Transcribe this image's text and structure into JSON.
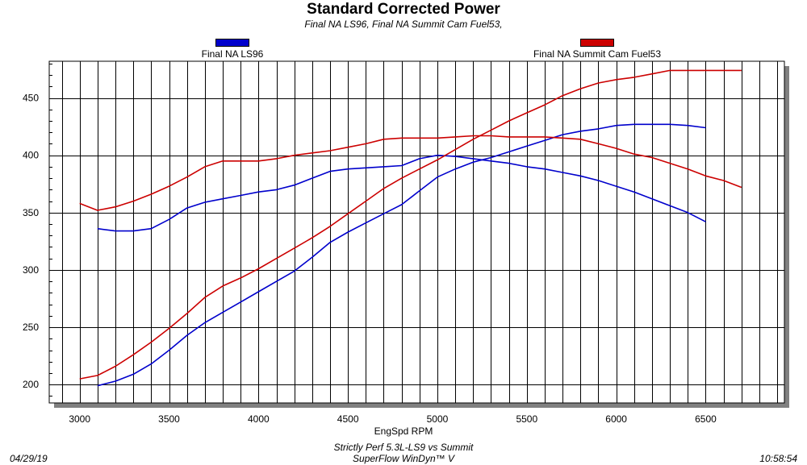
{
  "chart_data": {
    "type": "line",
    "title": "Standard Corrected Power",
    "subtitle": "Final NA LS96, Final NA Summit Cam Fuel53,",
    "xlabel": "EngSpd RPM",
    "ylabel": "",
    "xlim": [
      2830,
      6940
    ],
    "ylim": [
      184,
      482
    ],
    "xticks": [
      3000,
      3500,
      4000,
      4500,
      5000,
      5500,
      6000,
      6500
    ],
    "yticks": [
      200,
      250,
      300,
      350,
      400,
      450
    ],
    "grid": true,
    "legend_placement": "top",
    "series": [
      {
        "name": "Final NA LS96",
        "color": "#0000cc",
        "lines": [
          {
            "x": [
              3100,
              3200,
              3300,
              3400,
              3500,
              3600,
              3700,
              3800,
              3900,
              4000,
              4100,
              4200,
              4300,
              4400,
              4500,
              4600,
              4700,
              4800,
              4900,
              5000,
              5100,
              5200,
              5300,
              5400,
              5500,
              5600,
              5700,
              5800,
              5900,
              6000,
              6100,
              6200,
              6300,
              6400,
              6500
            ],
            "y": [
              199,
              203,
              209,
              218,
              230,
              243,
              254,
              263,
              272,
              281,
              290,
              299,
              311,
              324,
              333,
              341,
              349,
              357,
              369,
              381,
              388,
              394,
              398,
              403,
              408,
              413,
              418,
              421,
              423,
              426,
              427,
              427,
              427,
              426,
              424
            ]
          },
          {
            "x": [
              3100,
              3200,
              3300,
              3400,
              3500,
              3600,
              3700,
              3800,
              3900,
              4000,
              4100,
              4200,
              4300,
              4400,
              4500,
              4600,
              4700,
              4800,
              4900,
              5000,
              5100,
              5200,
              5300,
              5400,
              5500,
              5600,
              5700,
              5800,
              5900,
              6000,
              6100,
              6200,
              6300,
              6400,
              6500
            ],
            "y": [
              336,
              334,
              334,
              336,
              344,
              354,
              359,
              362,
              365,
              368,
              370,
              374,
              380,
              386,
              388,
              389,
              390,
              391,
              397,
              400,
              399,
              397,
              395,
              393,
              390,
              388,
              385,
              382,
              378,
              373,
              368,
              362,
              356,
              350,
              342
            ]
          }
        ]
      },
      {
        "name": "Final NA Summit Cam Fuel53",
        "color": "#cc0000",
        "lines": [
          {
            "x": [
              3000,
              3100,
              3200,
              3300,
              3400,
              3500,
              3600,
              3700,
              3800,
              3900,
              4000,
              4100,
              4200,
              4300,
              4400,
              4500,
              4600,
              4700,
              4800,
              4900,
              5000,
              5100,
              5200,
              5300,
              5400,
              5500,
              5600,
              5700,
              5800,
              5900,
              6000,
              6100,
              6200,
              6300,
              6400,
              6500,
              6600,
              6700
            ],
            "y": [
              205,
              208,
              216,
              226,
              237,
              249,
              262,
              276,
              286,
              293,
              301,
              310,
              319,
              328,
              338,
              349,
              360,
              371,
              380,
              388,
              396,
              405,
              414,
              422,
              430,
              437,
              444,
              452,
              458,
              463,
              466,
              468,
              471,
              474,
              474,
              474,
              474,
              474
            ]
          },
          {
            "x": [
              3000,
              3100,
              3200,
              3300,
              3400,
              3500,
              3600,
              3700,
              3800,
              3900,
              4000,
              4100,
              4200,
              4300,
              4400,
              4500,
              4600,
              4700,
              4800,
              4900,
              5000,
              5100,
              5200,
              5300,
              5400,
              5500,
              5600,
              5700,
              5800,
              5900,
              6000,
              6100,
              6200,
              6300,
              6400,
              6500,
              6600,
              6700
            ],
            "y": [
              358,
              352,
              355,
              360,
              366,
              373,
              381,
              390,
              395,
              395,
              395,
              397,
              400,
              402,
              404,
              407,
              410,
              414,
              415,
              415,
              415,
              416,
              417,
              417,
              416,
              416,
              416,
              415,
              414,
              410,
              406,
              401,
              398,
              393,
              388,
              382,
              378,
              372
            ]
          }
        ]
      }
    ]
  },
  "footer": {
    "date": "04/29/19",
    "time": "10:58:54",
    "line1": "Strictly Perf 5.3L-LS9 vs Summit",
    "line2": "SuperFlow WinDyn™ V"
  }
}
